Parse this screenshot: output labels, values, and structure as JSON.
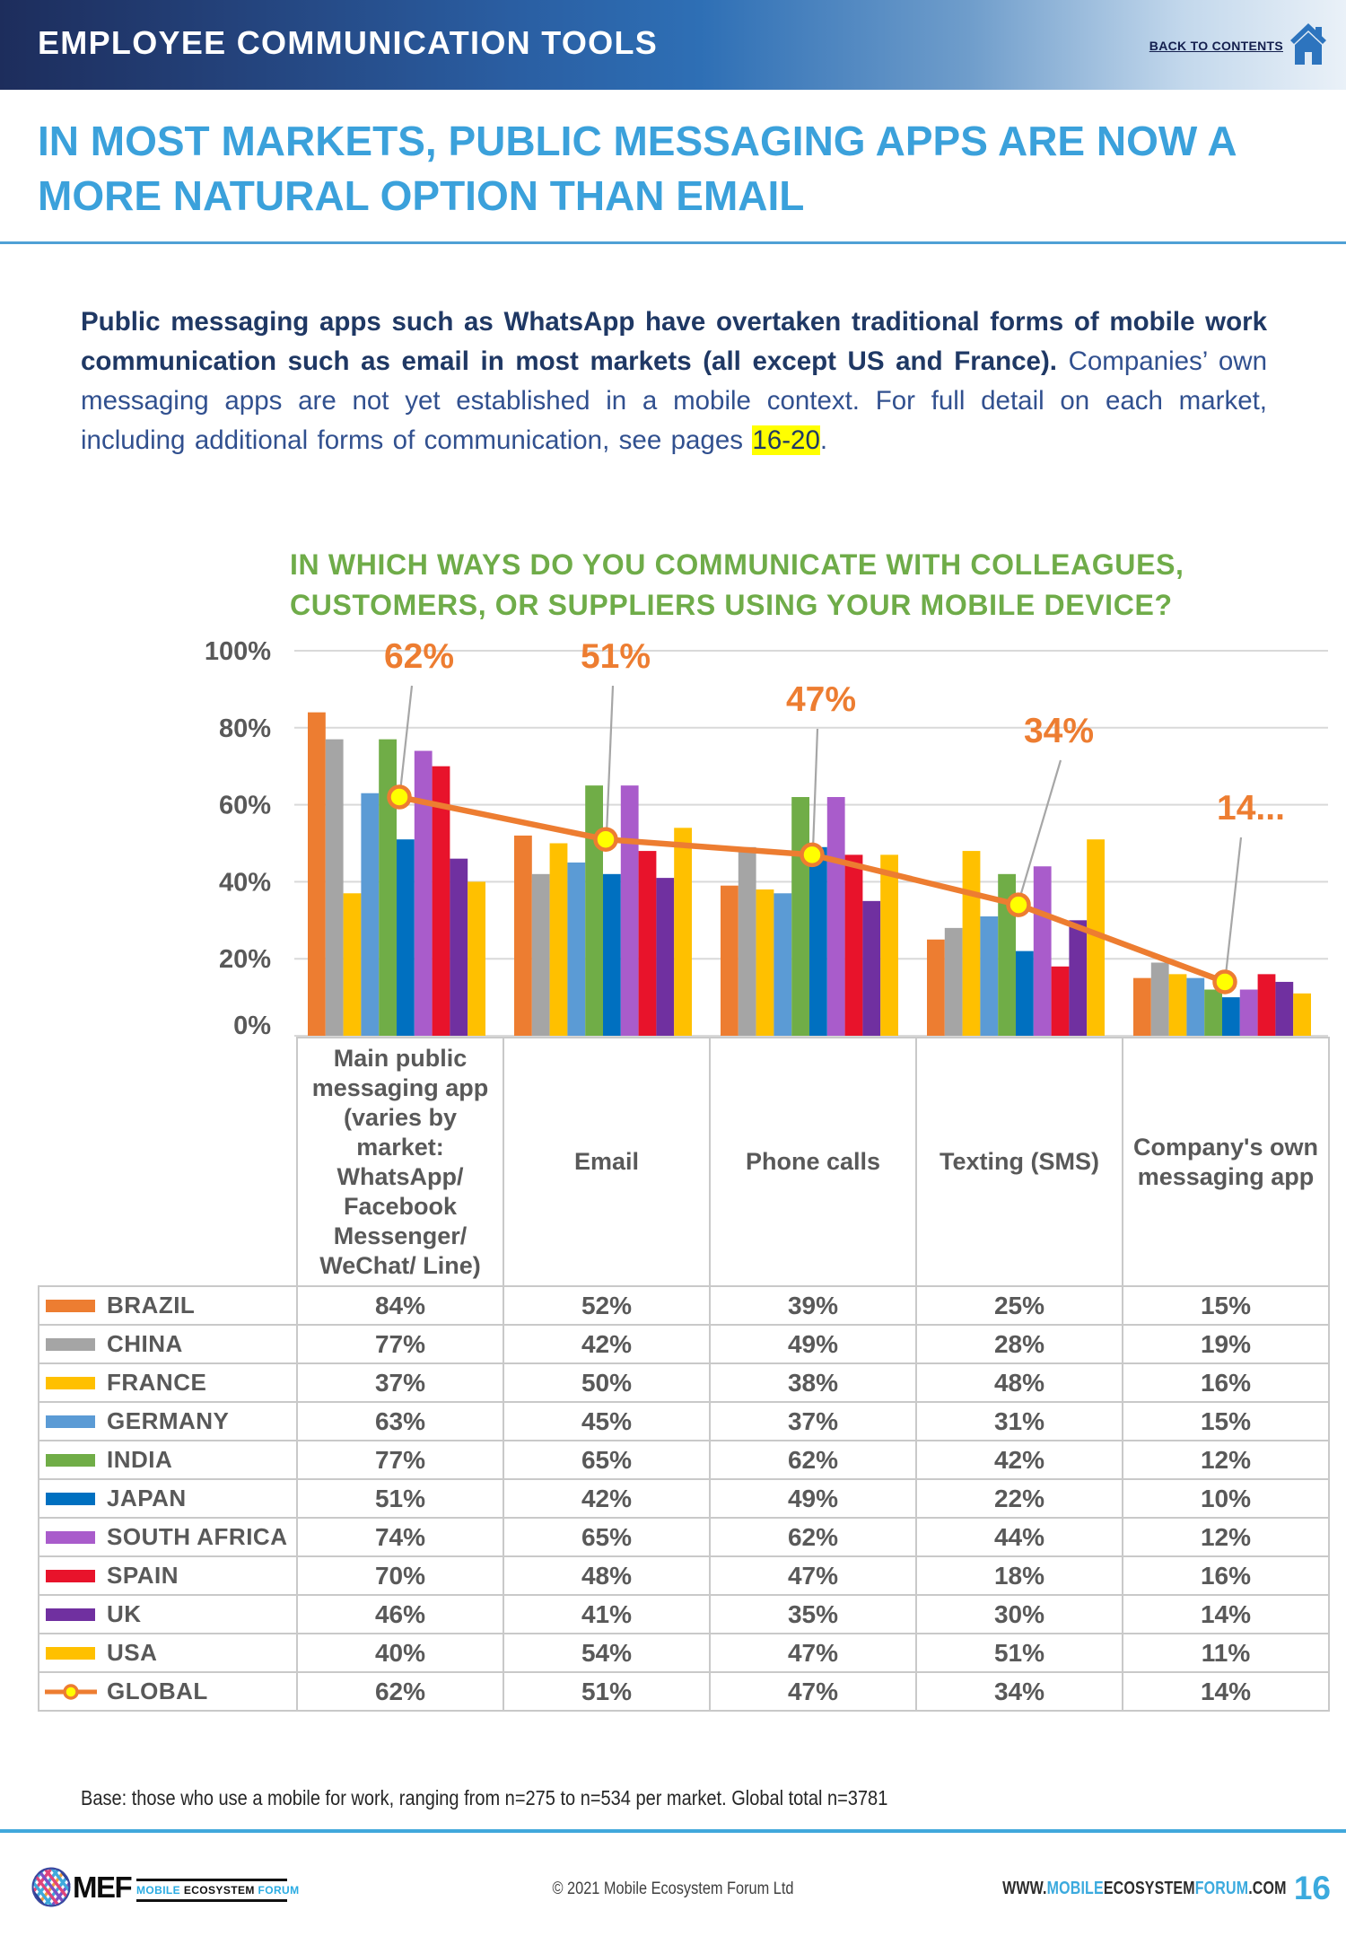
{
  "header": {
    "title": "EMPLOYEE COMMUNICATION TOOLS",
    "back_link": "BACK TO CONTENTS",
    "home_icon": "home-icon",
    "home_icon_color": "#2d74be"
  },
  "headline": "IN MOST MARKETS, PUBLIC MESSAGING APPS ARE NOW A MORE NATURAL OPTION THAN EMAIL",
  "intro": {
    "bold": "Public messaging apps such as WhatsApp have overtaken traditional forms of mobile work communication such as email in most markets (all except US and France).",
    "regular": " Companies’ own messaging apps are not yet established in a mobile context. For full detail on each market, including additional forms of communication, see pages ",
    "highlight": "16-20",
    "after_highlight": "."
  },
  "chart_title": "IN WHICH WAYS DO YOU COMMUNICATE WITH COLLEAGUES, CUSTOMERS, OR SUPPLIERS USING YOUR MOBILE DEVICE?",
  "chart_data": {
    "type": "bar",
    "title": "IN WHICH WAYS DO YOU COMMUNICATE WITH COLLEAGUES, CUSTOMERS, OR SUPPLIERS USING YOUR MOBILE DEVICE?",
    "categories": [
      "Main public messaging app (varies by market: WhatsApp/ Facebook Messenger/ WeChat/ Line)",
      "Email",
      "Phone calls",
      "Texting (SMS)",
      "Company's own messaging app"
    ],
    "series": [
      {
        "name": "BRAZIL",
        "color": "#ED7D31",
        "values": [
          84,
          52,
          39,
          25,
          15
        ]
      },
      {
        "name": "CHINA",
        "color": "#A5A5A5",
        "values": [
          77,
          42,
          49,
          28,
          19
        ]
      },
      {
        "name": "FRANCE",
        "color": "#FFC000",
        "values": [
          37,
          50,
          38,
          48,
          16
        ]
      },
      {
        "name": "GERMANY",
        "color": "#5B9BD5",
        "values": [
          63,
          45,
          37,
          31,
          15
        ]
      },
      {
        "name": "INDIA",
        "color": "#70AD47",
        "values": [
          77,
          65,
          62,
          42,
          12
        ]
      },
      {
        "name": "JAPAN",
        "color": "#0070C0",
        "values": [
          51,
          42,
          49,
          22,
          10
        ]
      },
      {
        "name": "SOUTH AFRICA",
        "color": "#A95CCB",
        "values": [
          74,
          65,
          62,
          44,
          12
        ]
      },
      {
        "name": "SPAIN",
        "color": "#E8132B",
        "values": [
          70,
          48,
          47,
          18,
          16
        ]
      },
      {
        "name": "UK",
        "color": "#7030A0",
        "values": [
          46,
          41,
          35,
          30,
          14
        ]
      },
      {
        "name": "USA",
        "color": "#FFC000",
        "values": [
          40,
          54,
          47,
          51,
          11
        ]
      }
    ],
    "line_series": {
      "name": "GLOBAL",
      "color": "#ED7D31",
      "marker_fill": "#FFFF00",
      "values": [
        62,
        51,
        47,
        34,
        14
      ],
      "labels": [
        "62%",
        "51%",
        "47%",
        "34%",
        "14..."
      ]
    },
    "y_axis": {
      "ticks": [
        "0%",
        "20%",
        "40%",
        "60%",
        "80%",
        "100%"
      ],
      "range": [
        0,
        100
      ]
    },
    "grid": "horizontal",
    "legend_position": "table-left"
  },
  "table": {
    "header": [
      "Main public messaging app (varies by market: WhatsApp/ Facebook Messenger/ WeChat/ Line)",
      "Email",
      "Phone calls",
      "Texting (SMS)",
      "Company's own messaging app"
    ],
    "rows": [
      {
        "label": "BRAZIL",
        "swatch": "#ED7D31",
        "marker": "box",
        "values": [
          "84%",
          "52%",
          "39%",
          "25%",
          "15%"
        ]
      },
      {
        "label": "CHINA",
        "swatch": "#A5A5A5",
        "marker": "box",
        "values": [
          "77%",
          "42%",
          "49%",
          "28%",
          "19%"
        ]
      },
      {
        "label": "FRANCE",
        "swatch": "#FFC000",
        "marker": "box",
        "values": [
          "37%",
          "50%",
          "38%",
          "48%",
          "16%"
        ]
      },
      {
        "label": "GERMANY",
        "swatch": "#5B9BD5",
        "marker": "box",
        "values": [
          "63%",
          "45%",
          "37%",
          "31%",
          "15%"
        ]
      },
      {
        "label": "INDIA",
        "swatch": "#70AD47",
        "marker": "box",
        "values": [
          "77%",
          "65%",
          "62%",
          "42%",
          "12%"
        ]
      },
      {
        "label": "JAPAN",
        "swatch": "#0070C0",
        "marker": "box",
        "values": [
          "51%",
          "42%",
          "49%",
          "22%",
          "10%"
        ]
      },
      {
        "label": "SOUTH AFRICA",
        "swatch": "#A95CCB",
        "marker": "box",
        "values": [
          "74%",
          "65%",
          "62%",
          "44%",
          "12%"
        ]
      },
      {
        "label": "SPAIN",
        "swatch": "#E8132B",
        "marker": "box",
        "values": [
          "70%",
          "48%",
          "47%",
          "18%",
          "16%"
        ]
      },
      {
        "label": "UK",
        "swatch": "#7030A0",
        "marker": "box",
        "values": [
          "46%",
          "41%",
          "35%",
          "30%",
          "14%"
        ]
      },
      {
        "label": "USA",
        "swatch": "#FFC000",
        "marker": "box",
        "values": [
          "40%",
          "54%",
          "47%",
          "51%",
          "11%"
        ]
      },
      {
        "label": "GLOBAL",
        "swatch": "#ED7D31",
        "marker": "line",
        "values": [
          "62%",
          "51%",
          "47%",
          "34%",
          "14%"
        ]
      }
    ]
  },
  "base_note": "Base: those who use a mobile for work, ranging from n=275 to n=534 per market. Global total n=3781",
  "footer": {
    "logo_word": "MEF",
    "logo_sub": [
      {
        "text": "MOBILE ",
        "color": "#29abe2"
      },
      {
        "text": "ECOSYSTEM ",
        "color": "#111111"
      },
      {
        "text": "FORUM",
        "color": "#29abe2"
      }
    ],
    "copyright": "© 2021 Mobile Ecosystem Forum Ltd",
    "website_segments": [
      {
        "text": "WWW.",
        "color": "#2b2b2b"
      },
      {
        "text": "MOBILE",
        "color": "#3baade"
      },
      {
        "text": "ECOSYSTEM",
        "color": "#2b2b2b"
      },
      {
        "text": "FORUM",
        "color": "#3baade"
      },
      {
        "text": ".COM",
        "color": "#2b2b2b"
      }
    ],
    "page_number": "16"
  },
  "colors": {
    "banner_dark": "#1d2d5c",
    "banner_mid": "#2e6fb5",
    "banner_light": "#eaf1f8",
    "headline_blue": "#3ba1db",
    "intro_navy": "#1f3864",
    "highlight_yellow": "#ffff00",
    "chart_title_green": "#6fac49",
    "axis_text_gray": "#595959",
    "gridline_gray": "#d9d9d9",
    "table_border_gray": "#c9c9c9",
    "global_line_orange": "#ED7D31",
    "marker_yellow": "#FFFF00",
    "leader_gray": "#A6A6A6",
    "footer_rule_blue": "#41a8dc"
  }
}
